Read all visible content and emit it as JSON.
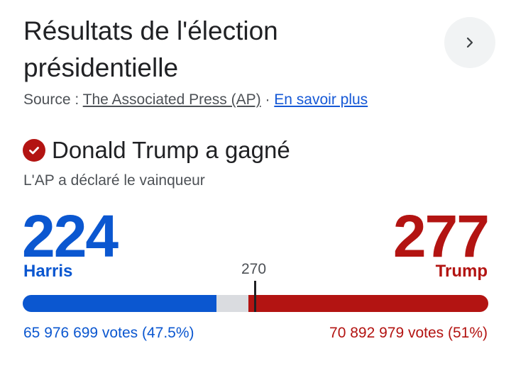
{
  "header": {
    "title": "Résultats de l'élection présidentielle",
    "next_icon": "chevron-right-icon"
  },
  "source": {
    "prefix": "Source : ",
    "publisher": "The Associated Press (AP)",
    "separator": " · ",
    "learn_more": "En savoir plus"
  },
  "result": {
    "winner_icon": "check-circle-icon",
    "winner_text": "Donald Trump a gagné",
    "declared_text": "L'AP a déclaré le vainqueur"
  },
  "candidates": {
    "left": {
      "name": "Harris",
      "electoral_votes": "224",
      "popular_votes": "65 976 699 votes (47.5%)",
      "color": "#0b57d0"
    },
    "right": {
      "name": "Trump",
      "electoral_votes": "277",
      "popular_votes": "70 892 979 votes (51%)",
      "color": "#b31412"
    }
  },
  "threshold": {
    "label": "270",
    "value": 270,
    "total": 538
  },
  "bar": {
    "left_value": 224,
    "right_value": 277,
    "total": 538,
    "remaining_color": "#dadce0"
  }
}
